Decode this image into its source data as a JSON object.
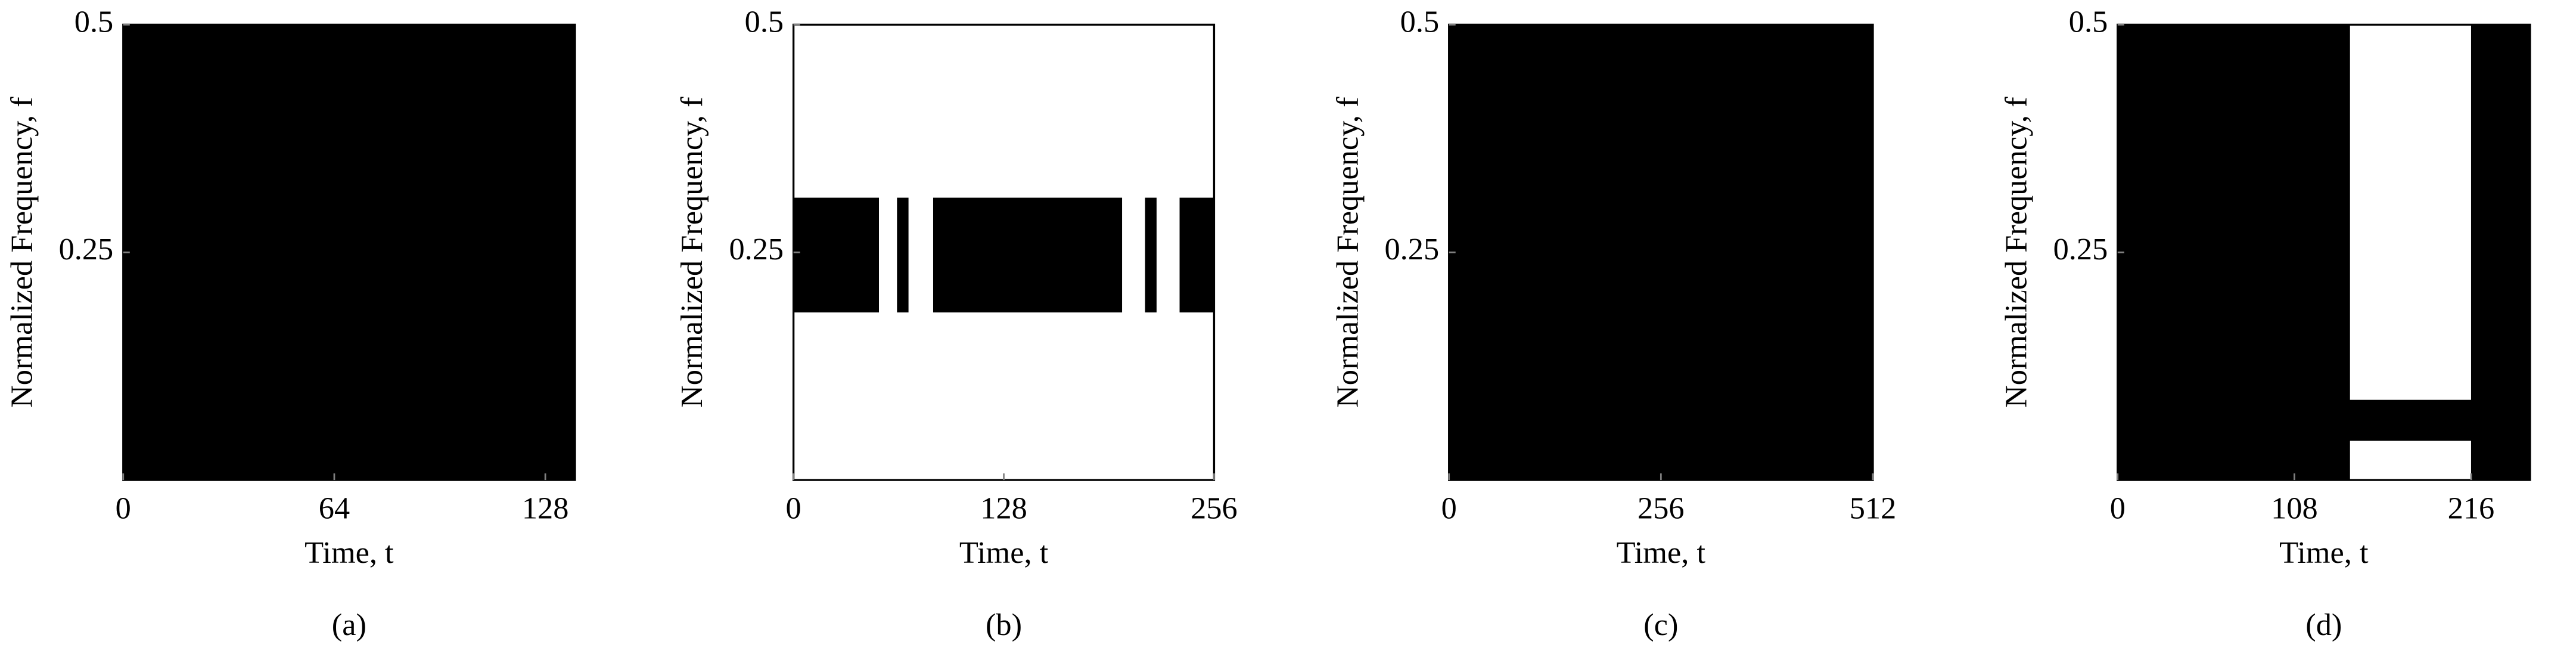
{
  "chart_data": [
    {
      "type": "mask",
      "label": "(a)",
      "xlabel": "Time, t",
      "ylabel": "Normalized Frequency, f",
      "xlim": [
        0,
        137
      ],
      "ylim": [
        0,
        0.5
      ],
      "xticks": [
        0,
        64,
        128
      ],
      "yticks": [
        0.25,
        0.5
      ],
      "background": "#000000",
      "regions": []
    },
    {
      "type": "mask",
      "label": "(b)",
      "xlabel": "Time, t",
      "ylabel": "Normalized Frequency, f",
      "xlim": [
        0,
        256
      ],
      "ylim": [
        0,
        0.5
      ],
      "xticks": [
        0,
        128,
        256
      ],
      "yticks": [
        0.25,
        0.5
      ],
      "background": "#ffffff",
      "regions": [
        {
          "t": [
            0,
            52
          ],
          "f": [
            0.184,
            0.31
          ],
          "color": "#000000"
        },
        {
          "t": [
            63,
            70
          ],
          "f": [
            0.184,
            0.31
          ],
          "color": "#000000"
        },
        {
          "t": [
            85,
            200
          ],
          "f": [
            0.184,
            0.31
          ],
          "color": "#000000"
        },
        {
          "t": [
            214,
            221
          ],
          "f": [
            0.184,
            0.31
          ],
          "color": "#000000"
        },
        {
          "t": [
            235,
            256
          ],
          "f": [
            0.184,
            0.31
          ],
          "color": "#000000"
        }
      ]
    },
    {
      "type": "mask",
      "label": "(c)",
      "xlabel": "Time, t",
      "ylabel": "Normalized Frequency, f",
      "xlim": [
        0,
        512
      ],
      "ylim": [
        0,
        0.5
      ],
      "xticks": [
        0,
        256,
        512
      ],
      "yticks": [
        0.25,
        0.5
      ],
      "background": "#000000",
      "regions": []
    },
    {
      "type": "mask",
      "label": "(d)",
      "xlabel": "Time, t",
      "ylabel": "Normalized Frequency, f",
      "xlim": [
        0,
        252
      ],
      "ylim": [
        0,
        0.5
      ],
      "xticks": [
        0,
        108,
        216
      ],
      "yticks": [
        0.25,
        0.5
      ],
      "background": "#000000",
      "regions": [
        {
          "t": [
            142,
            216
          ],
          "f": [
            0.088,
            0.5
          ],
          "color": "#ffffff"
        },
        {
          "t": [
            142,
            216
          ],
          "f": [
            0,
            0.043
          ],
          "color": "#ffffff"
        }
      ]
    }
  ]
}
